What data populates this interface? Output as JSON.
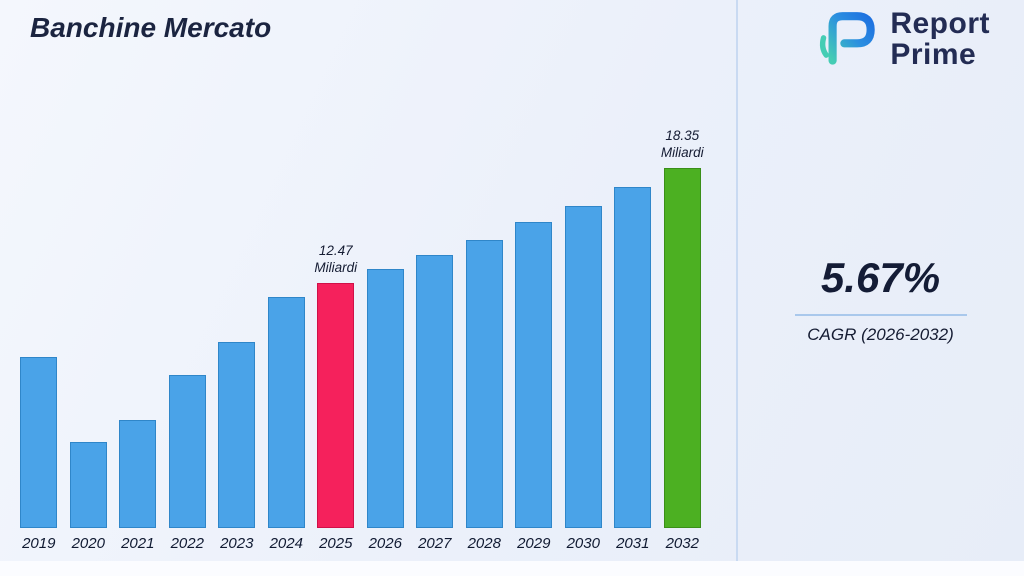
{
  "title": "Banchine Mercato",
  "logo": {
    "line1": "Report",
    "line2": "Prime"
  },
  "cagr": {
    "value": "5.67%",
    "label": "CAGR (2026-2032)"
  },
  "colors": {
    "bar_blue": "#4aa3e8",
    "bar_blue_border": "#2f86c9",
    "bar_pink": "#f5215c",
    "bar_pink_border": "#d01048",
    "bar_green": "#4cb022",
    "bar_green_border": "#3a8f18",
    "divider": "#c9daf2",
    "text_navy": "#1b2440"
  },
  "chart_data": {
    "type": "bar",
    "title": "Banchine Mercato",
    "categories": [
      "2019",
      "2020",
      "2021",
      "2022",
      "2023",
      "2024",
      "2025",
      "2026",
      "2027",
      "2028",
      "2029",
      "2030",
      "2031",
      "2032"
    ],
    "values": [
      8.7,
      4.4,
      5.5,
      7.8,
      9.5,
      11.8,
      12.47,
      13.2,
      13.9,
      14.7,
      15.6,
      16.4,
      17.4,
      18.35
    ],
    "unit": "Miliardi",
    "xlabel": "",
    "ylabel": "",
    "ylim": [
      0,
      20
    ],
    "grid": false,
    "legend": false,
    "bar_default_color": "#4aa3e8",
    "bar_border_color": "#2f86c9",
    "annotations": [
      {
        "index": 6,
        "value_label": "12.47",
        "unit_label": "Miliardi",
        "color": "#f5215c",
        "border": "#d01048"
      },
      {
        "index": 13,
        "value_label": "18.35",
        "unit_label": "Miliardi",
        "color": "#4cb022",
        "border": "#3a8f18"
      }
    ]
  }
}
